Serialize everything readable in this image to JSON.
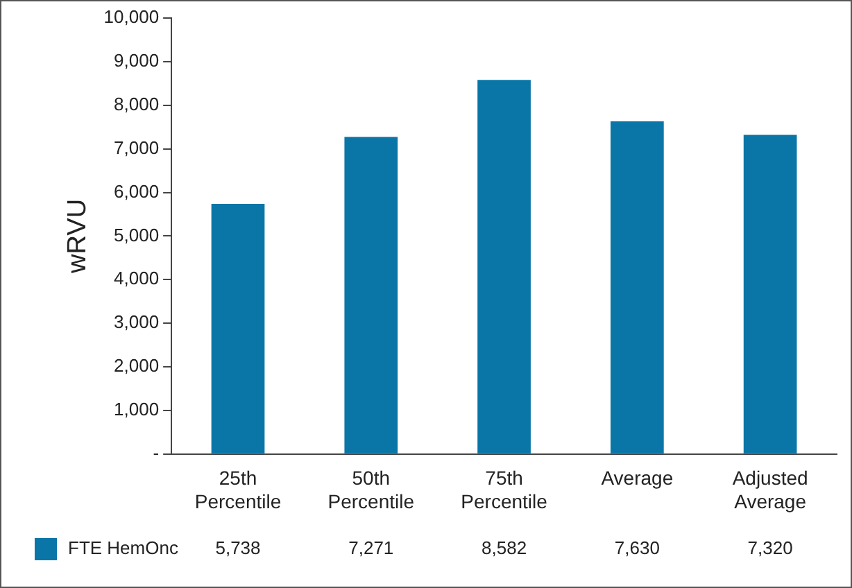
{
  "chart_data": {
    "type": "bar",
    "ylabel": "wRVU",
    "categories": [
      "25th Percentile",
      "50th Percentile",
      "75th Percentile",
      "Average",
      "Adjusted Average"
    ],
    "series": [
      {
        "name": "FTE HemOnc",
        "color": "#0a76a8",
        "values": [
          5738,
          7271,
          8582,
          7630,
          7320
        ],
        "value_labels": [
          "5,738",
          "7,271",
          "8,582",
          "7,630",
          "7,320"
        ]
      }
    ],
    "ylim": [
      0,
      10000
    ],
    "yticks": [
      {
        "value": 0,
        "label": "-"
      },
      {
        "value": 1000,
        "label": "1,000"
      },
      {
        "value": 2000,
        "label": "2,000"
      },
      {
        "value": 3000,
        "label": "3,000"
      },
      {
        "value": 4000,
        "label": "4,000"
      },
      {
        "value": 5000,
        "label": "5,000"
      },
      {
        "value": 6000,
        "label": "6,000"
      },
      {
        "value": 7000,
        "label": "7,000"
      },
      {
        "value": 8000,
        "label": "8,000"
      },
      {
        "value": 9000,
        "label": "9,000"
      },
      {
        "value": 10000,
        "label": "10,000"
      }
    ],
    "grid": false,
    "legend": "bottom left"
  }
}
